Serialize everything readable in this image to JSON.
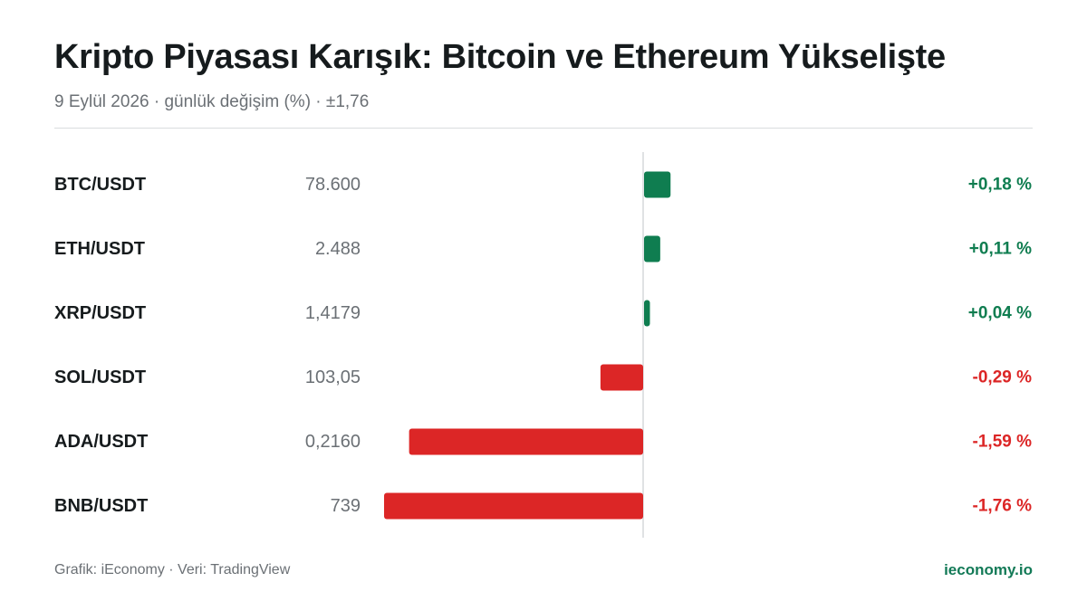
{
  "header": {
    "title": "Kripto Piyasası Karışık: Bitcoin ve Ethereum Yükselişte",
    "subtitle": "9 Eylül 2026 · günlük değişim (%) · ±1,76"
  },
  "footer": {
    "credit": "Grafik: iEconomy · Veri: TradingView",
    "brand": "ieconomy.io"
  },
  "colors": {
    "positive": "#0f7d50",
    "negative": "#dc2626",
    "axis": "#d6d9dc"
  },
  "chart_data": {
    "type": "bar",
    "orientation": "horizontal",
    "categories": [
      "BTC/USDT",
      "ETH/USDT",
      "XRP/USDT",
      "SOL/USDT",
      "ADA/USDT",
      "BNB/USDT"
    ],
    "prices": [
      "78.600",
      "2.488",
      "1,4179",
      "103,05",
      "0,2160",
      "739"
    ],
    "values": [
      0.18,
      0.11,
      0.04,
      -0.29,
      -1.59,
      -1.76
    ],
    "value_labels": [
      "+0,18 %",
      "+0,11 %",
      "+0,04 %",
      "-0,29 %",
      "-1,59 %",
      "-1,76 %"
    ],
    "xlim": [
      -1.76,
      1.76
    ],
    "grid": false
  }
}
